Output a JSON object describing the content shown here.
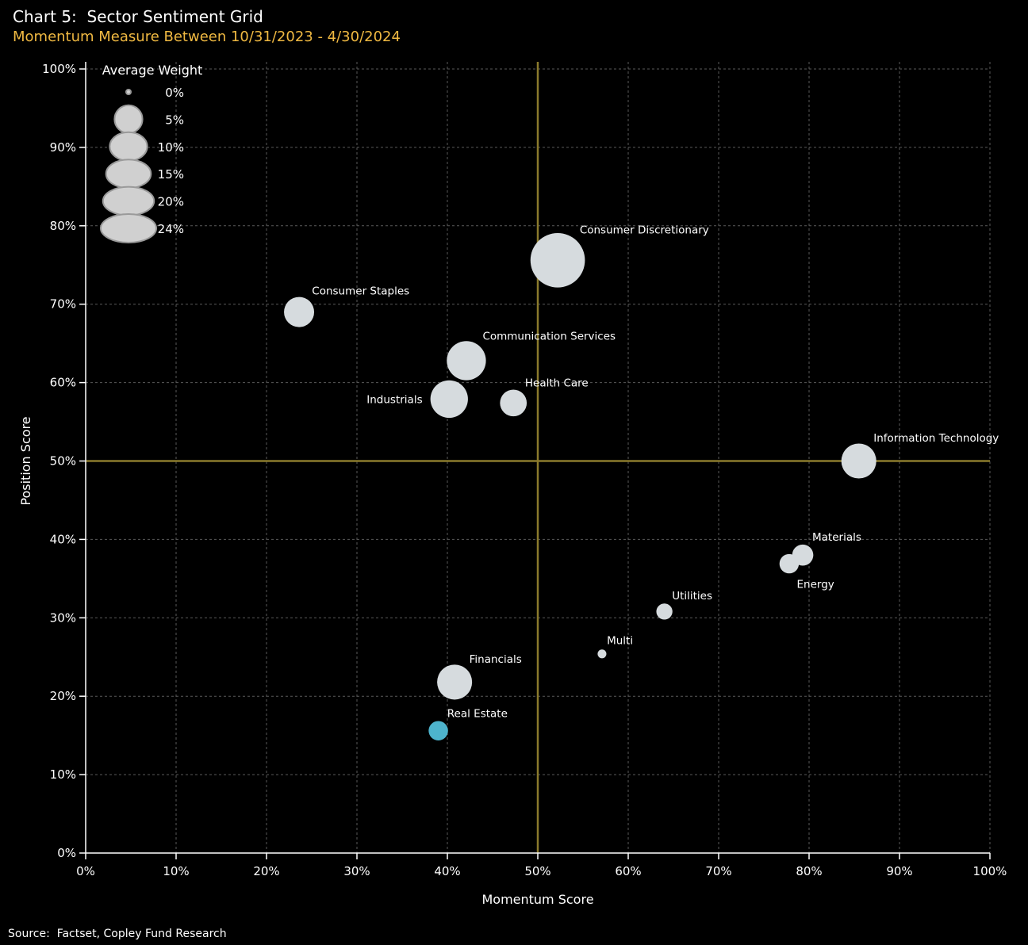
{
  "colors": {
    "background": "#000000",
    "subtitle": "#f0b942",
    "bubble": "#d6dbde",
    "highlight": "#4db3cc",
    "ref_line": "#8a7a2c",
    "grid": "#5a5a5a",
    "legend_bubble": "#d0d0d0",
    "legend_stroke": "#9a9a9a"
  },
  "chart_data": {
    "type": "scatter",
    "title": "Chart 5:  Sector Sentiment Grid",
    "subtitle": "Momentum Measure Between 10/31/2023 - 4/30/2024",
    "xlabel": "Momentum Score",
    "ylabel": "Position Score",
    "xlim": [
      0,
      100
    ],
    "ylim": [
      0,
      100
    ],
    "x_ticks": [
      "0%",
      "10%",
      "20%",
      "30%",
      "40%",
      "50%",
      "60%",
      "70%",
      "80%",
      "90%",
      "100%"
    ],
    "y_ticks": [
      "0%",
      "10%",
      "20%",
      "30%",
      "40%",
      "50%",
      "60%",
      "70%",
      "80%",
      "90%",
      "100%"
    ],
    "grid": true,
    "reference_lines": {
      "x": 50,
      "y": 50
    },
    "legend": {
      "title": "Average Weight",
      "placement": "top-left",
      "entries": [
        {
          "label": "0%",
          "weight": 0
        },
        {
          "label": "5%",
          "weight": 5
        },
        {
          "label": "10%",
          "weight": 10
        },
        {
          "label": "15%",
          "weight": 15
        },
        {
          "label": "20%",
          "weight": 20
        },
        {
          "label": "24%",
          "weight": 24
        }
      ]
    },
    "points": [
      {
        "name": "Consumer Discretionary",
        "x": 52.2,
        "y": 75.6,
        "weight": 23,
        "label_pos": "upper-right"
      },
      {
        "name": "Consumer Staples",
        "x": 23.6,
        "y": 69.0,
        "weight": 6,
        "label_pos": "upper-right"
      },
      {
        "name": "Communication Services",
        "x": 42.1,
        "y": 62.8,
        "weight": 11,
        "label_pos": "upper-right"
      },
      {
        "name": "Industrials",
        "x": 40.2,
        "y": 57.9,
        "weight": 10,
        "label_pos": "left"
      },
      {
        "name": "Health Care",
        "x": 47.3,
        "y": 57.4,
        "weight": 4.5,
        "label_pos": "upper-right"
      },
      {
        "name": "Information Technology",
        "x": 85.5,
        "y": 50.0,
        "weight": 8.5,
        "label_pos": "upper-right"
      },
      {
        "name": "Materials",
        "x": 79.3,
        "y": 38.0,
        "weight": 2.5,
        "label_pos": "upper-right"
      },
      {
        "name": "Energy",
        "x": 77.8,
        "y": 36.9,
        "weight": 2.0,
        "label_pos": "below-right"
      },
      {
        "name": "Utilities",
        "x": 64.0,
        "y": 30.8,
        "weight": 1.2,
        "label_pos": "upper-right"
      },
      {
        "name": "Multi",
        "x": 57.1,
        "y": 25.4,
        "weight": 0.15,
        "label_pos": "upper-right"
      },
      {
        "name": "Financials",
        "x": 40.8,
        "y": 21.8,
        "weight": 8.5,
        "label_pos": "upper-right"
      },
      {
        "name": "Real Estate",
        "x": 39.0,
        "y": 15.6,
        "weight": 2.0,
        "label_pos": "upper-right",
        "highlight": true
      }
    ]
  },
  "source": "Source:  Factset, Copley Fund Research"
}
